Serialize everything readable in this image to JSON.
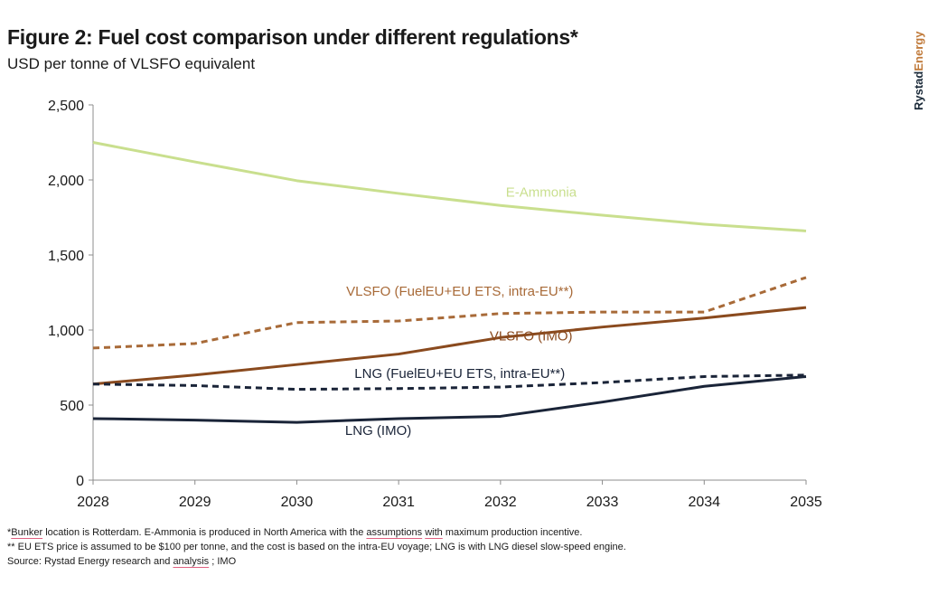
{
  "header": {
    "title": "Figure 2: Fuel cost comparison under different regulations*",
    "subtitle": "USD per tonne of VLSFO equivalent"
  },
  "brand": {
    "part1": "Rystad",
    "part2": "Energy"
  },
  "footnotes": {
    "line1": {
      "a": "*",
      "b": "Bunker",
      "c": " location is Rotterdam. E-Ammonia is produced in North America with the ",
      "d": "assumptions",
      "e": " ",
      "f": "with",
      "g": " maximum production incentive."
    },
    "line2": "** EU ETS price is assumed to be $100 per tonne, and the cost is based on the intra-EU voyage; LNG is with LNG diesel slow-speed engine.",
    "line3": {
      "a": "Source: Rystad Energy research and ",
      "b": "analysis",
      "c": " ; IMO"
    }
  },
  "chart_data": {
    "type": "line",
    "x": [
      2028,
      2029,
      2030,
      2031,
      2032,
      2033,
      2034,
      2035
    ],
    "x_ticks": [
      "2028",
      "2029",
      "2030",
      "2031",
      "2032",
      "2033",
      "2034",
      "2035"
    ],
    "ylim": [
      0,
      2500
    ],
    "y_ticks": [
      0,
      500,
      1000,
      1500,
      2000,
      2500
    ],
    "y_tick_labels": [
      "0",
      "500",
      "1,000",
      "1,500",
      "2,000",
      "2,500"
    ],
    "grid": false,
    "series": [
      {
        "name": "E-Ammonia",
        "color": "#c9df8e",
        "dash": false,
        "values": [
          2250,
          2120,
          1995,
          1910,
          1830,
          1765,
          1705,
          1660
        ],
        "label_at": [
          2032.4,
          1890
        ]
      },
      {
        "name": "VLSFO (FuelEU+EU ETS, intra-EU**)",
        "color": "#a86a38",
        "dash": true,
        "values": [
          880,
          910,
          1050,
          1060,
          1110,
          1120,
          1120,
          1350
        ],
        "label_at": [
          2031.6,
          1230
        ]
      },
      {
        "name": "VLSFO (IMO)",
        "color": "#8a4a1e",
        "dash": false,
        "values": [
          640,
          700,
          770,
          840,
          950,
          1020,
          1080,
          1150
        ],
        "label_at": [
          2032.3,
          930
        ]
      },
      {
        "name": "LNG (FuelEU+EU ETS, intra-EU**)",
        "color": "#1a2438",
        "dash": true,
        "values": [
          640,
          630,
          605,
          610,
          620,
          650,
          690,
          700
        ],
        "label_at": [
          2031.6,
          680
        ]
      },
      {
        "name": "LNG (IMO)",
        "color": "#1a2438",
        "dash": false,
        "values": [
          410,
          400,
          385,
          410,
          425,
          520,
          625,
          690
        ],
        "label_at": [
          2030.8,
          300
        ]
      }
    ]
  }
}
